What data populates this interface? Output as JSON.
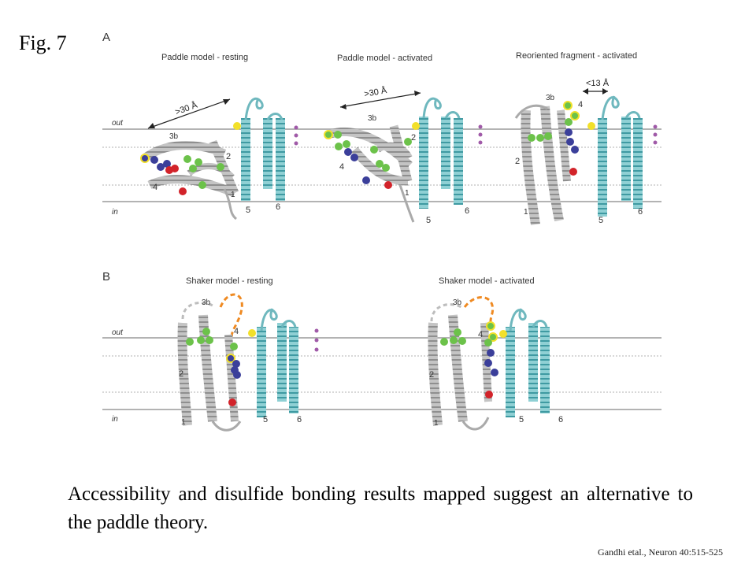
{
  "slide": {
    "fig_label": "Fig. 7",
    "caption": "Accessibility and disulfide bonding results mapped suggest an alternative to the paddle theory.",
    "citation": "Gandhi etal., Neuron 40:515-525"
  },
  "panel_a": {
    "letter": "A",
    "titles": {
      "resting": "Paddle model - resting",
      "activated": "Paddle model - activated",
      "reoriented": "Reoriented fragment - activated"
    },
    "out_label": "out",
    "in_label": "in",
    "distance_1": ">30 Å",
    "distance_2": ">30 Å",
    "distance_3": "<13 Å",
    "helix_labels": {
      "m1": {
        "h3b": "3b",
        "h2": "2",
        "h4": "4",
        "h1": "1",
        "h5": "5",
        "h6": "6"
      },
      "m2": {
        "h3b": "3b",
        "h2": "2",
        "h4": "4",
        "h1": "1",
        "h5": "5",
        "h6": "6"
      },
      "m3": {
        "h3b": "3b",
        "h4": "4",
        "h2": "2",
        "h1": "1",
        "h5": "5",
        "h6": "6"
      }
    }
  },
  "panel_b": {
    "letter": "B",
    "titles": {
      "resting": "Shaker model - resting",
      "activated": "Shaker model - activated"
    },
    "out_label": "out",
    "in_label": "in",
    "helix_labels": {
      "m1": {
        "h3b": "3b",
        "h4": "4",
        "h2": "2",
        "h1": "1",
        "h5": "5",
        "h6": "6"
      },
      "m2": {
        "h3b": "3b",
        "h4": "4",
        "h2": "2",
        "h1": "1",
        "h5": "5",
        "h6": "6"
      }
    }
  },
  "colors": {
    "membrane_line": "#9a9a9a",
    "helix_gray": "#b9b9b9",
    "helix_cyan": "#7fc4c9",
    "residue_green": "#6cc24a",
    "residue_blue": "#3b3f9a",
    "residue_red": "#d2232a",
    "residue_yellow": "#f2e02a",
    "loop_orange": "#ef8a22",
    "marker_purple": "#a05aa8"
  }
}
